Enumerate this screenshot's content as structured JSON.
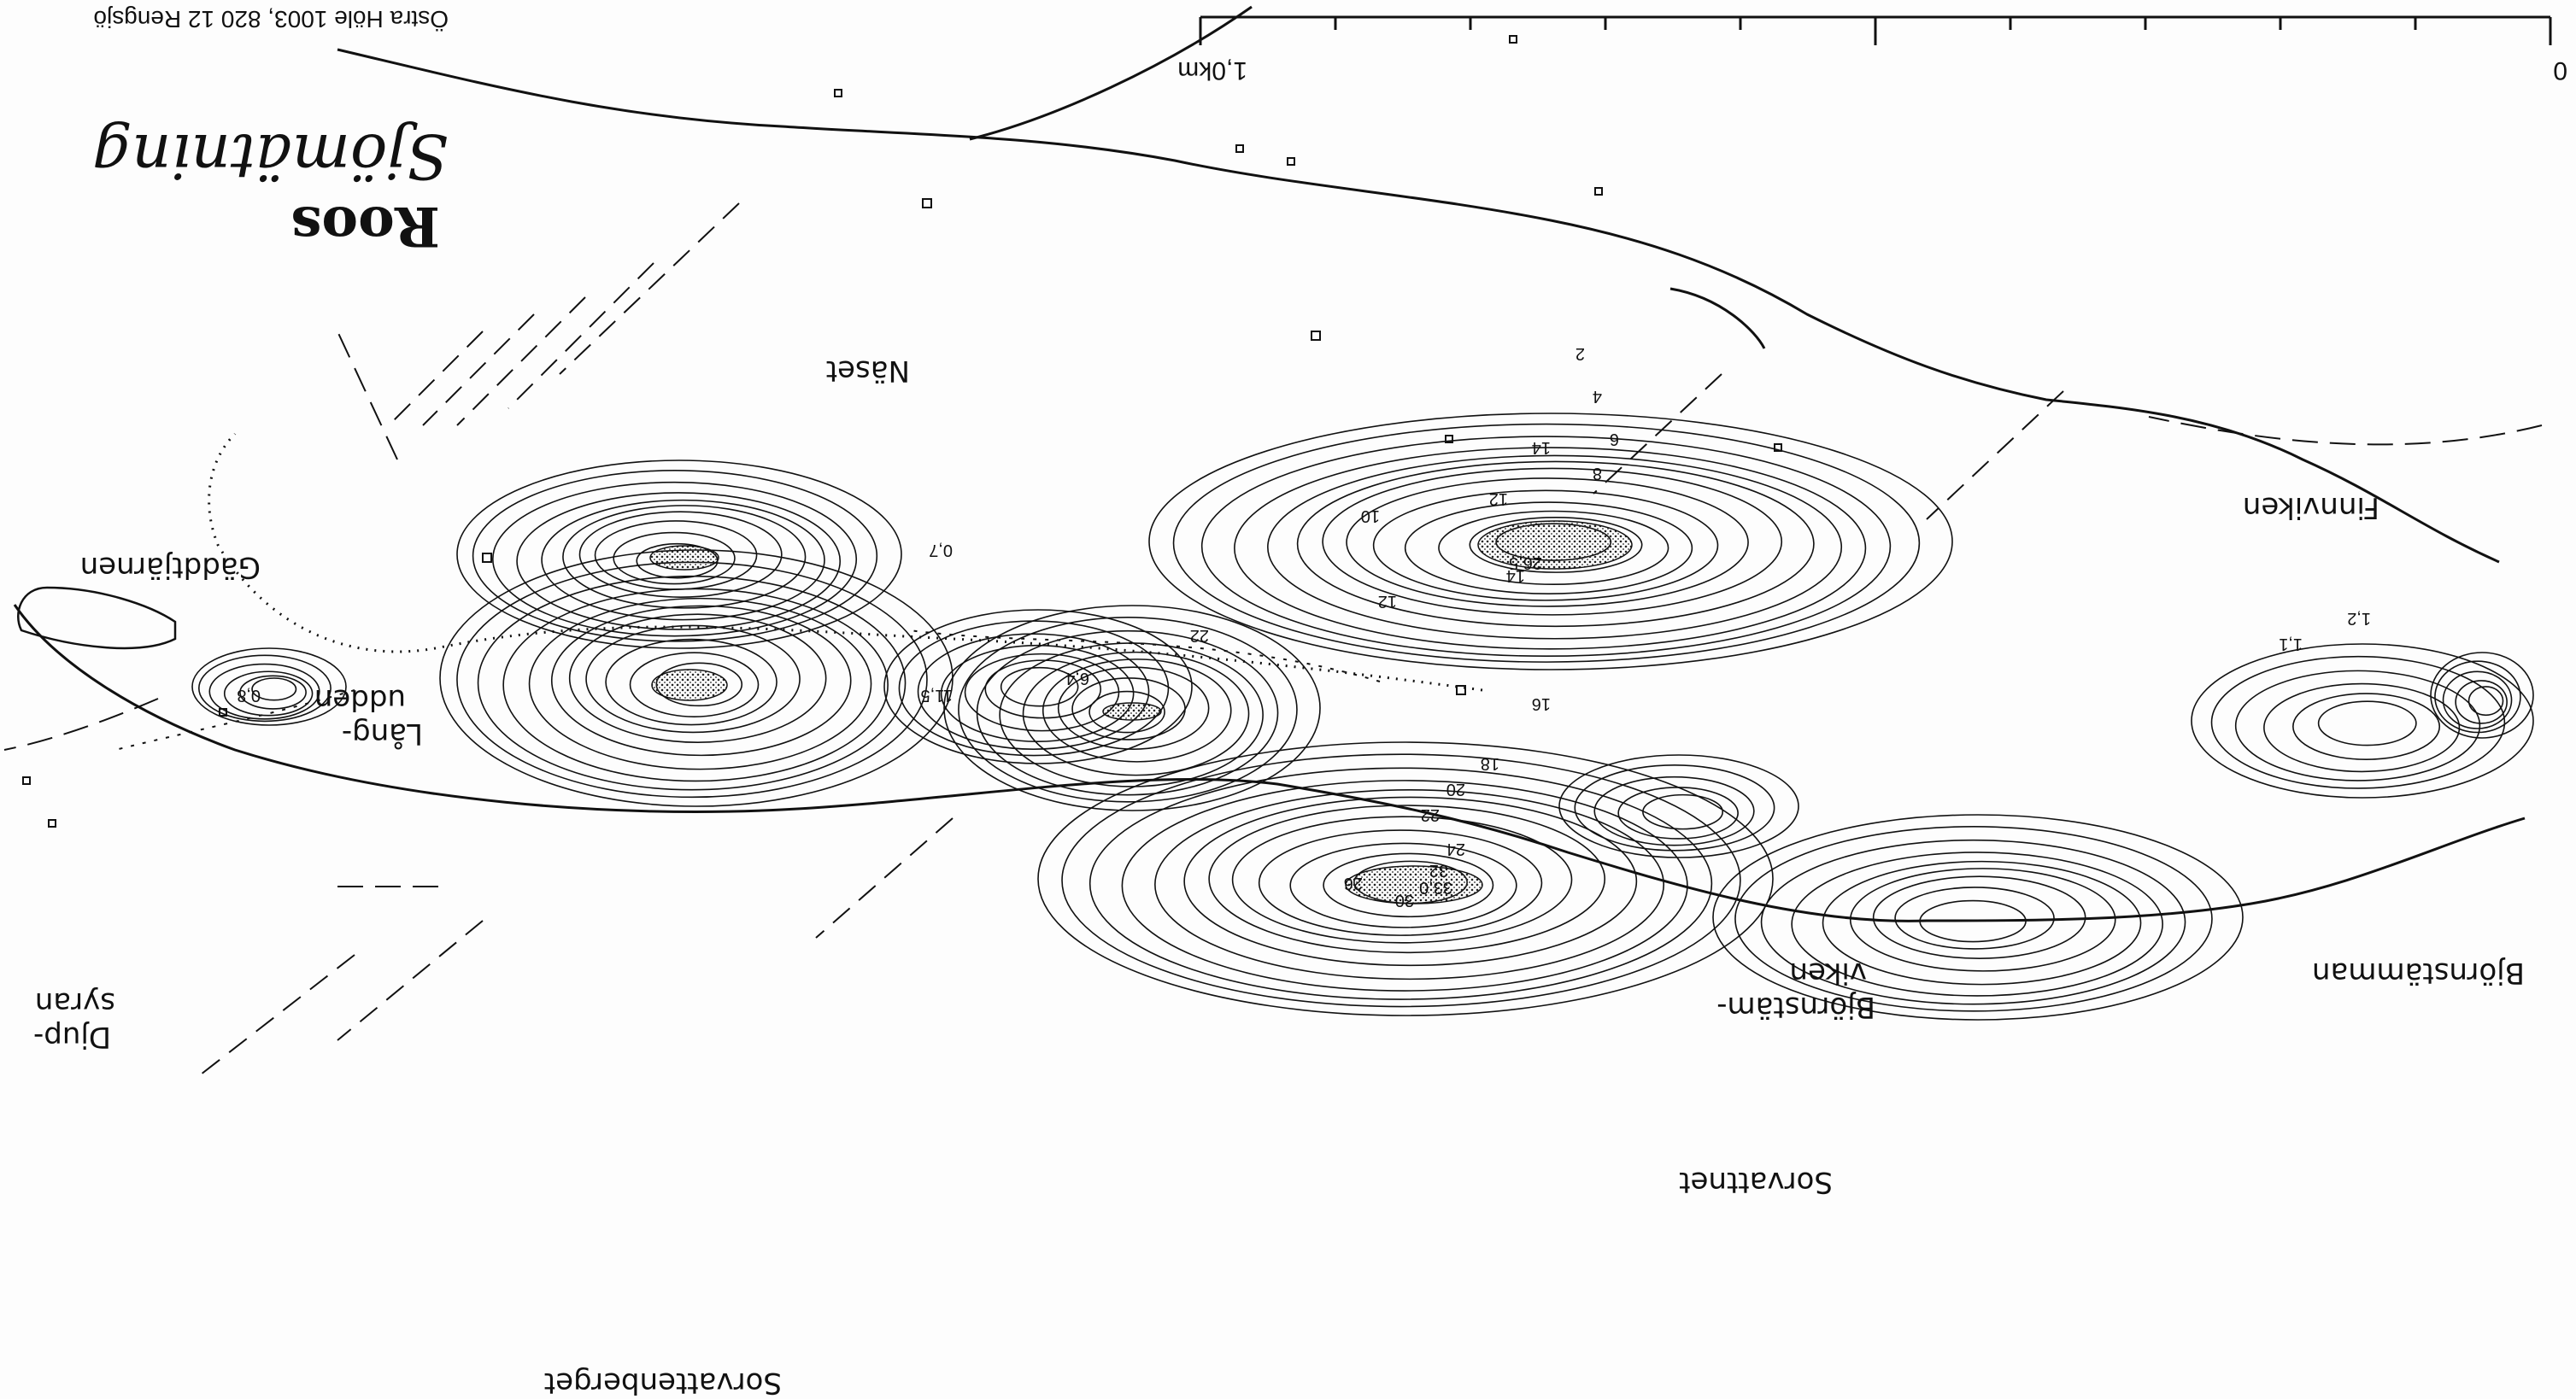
{
  "publisher": {
    "logo": "Roos",
    "subtitle": "Sjömätning",
    "address": "Östra Höle 1003, 820 12 Rengsjö"
  },
  "scale": {
    "start": "0",
    "end": "1,0km"
  },
  "places": {
    "naset": "Näset",
    "finnviken": "Finnviken",
    "gaddtjarnen": "Gäddtjärnen",
    "langudden_1": "Lång-",
    "langudden_2": "udden",
    "djupsyran_1": "Djup-",
    "djupsyran_2": "syran",
    "bjornstamviken_1": "Björnstäm-",
    "bjornstamviken_2": "viken",
    "bjornstamman": "Björnstämman",
    "sorvattnet": "Sorvattnet",
    "sorvattenberget": "Sorvattenberget"
  },
  "depths": [
    "2",
    "4",
    "6",
    "8",
    "10",
    "12",
    "14",
    "16",
    "18",
    "20",
    "22",
    "24",
    "26",
    "30",
    "33,0",
    "32",
    "26,5",
    "11,5",
    "6,4",
    "1,2",
    "1,1",
    "0,7",
    "0,8",
    "14",
    "12",
    "22"
  ]
}
